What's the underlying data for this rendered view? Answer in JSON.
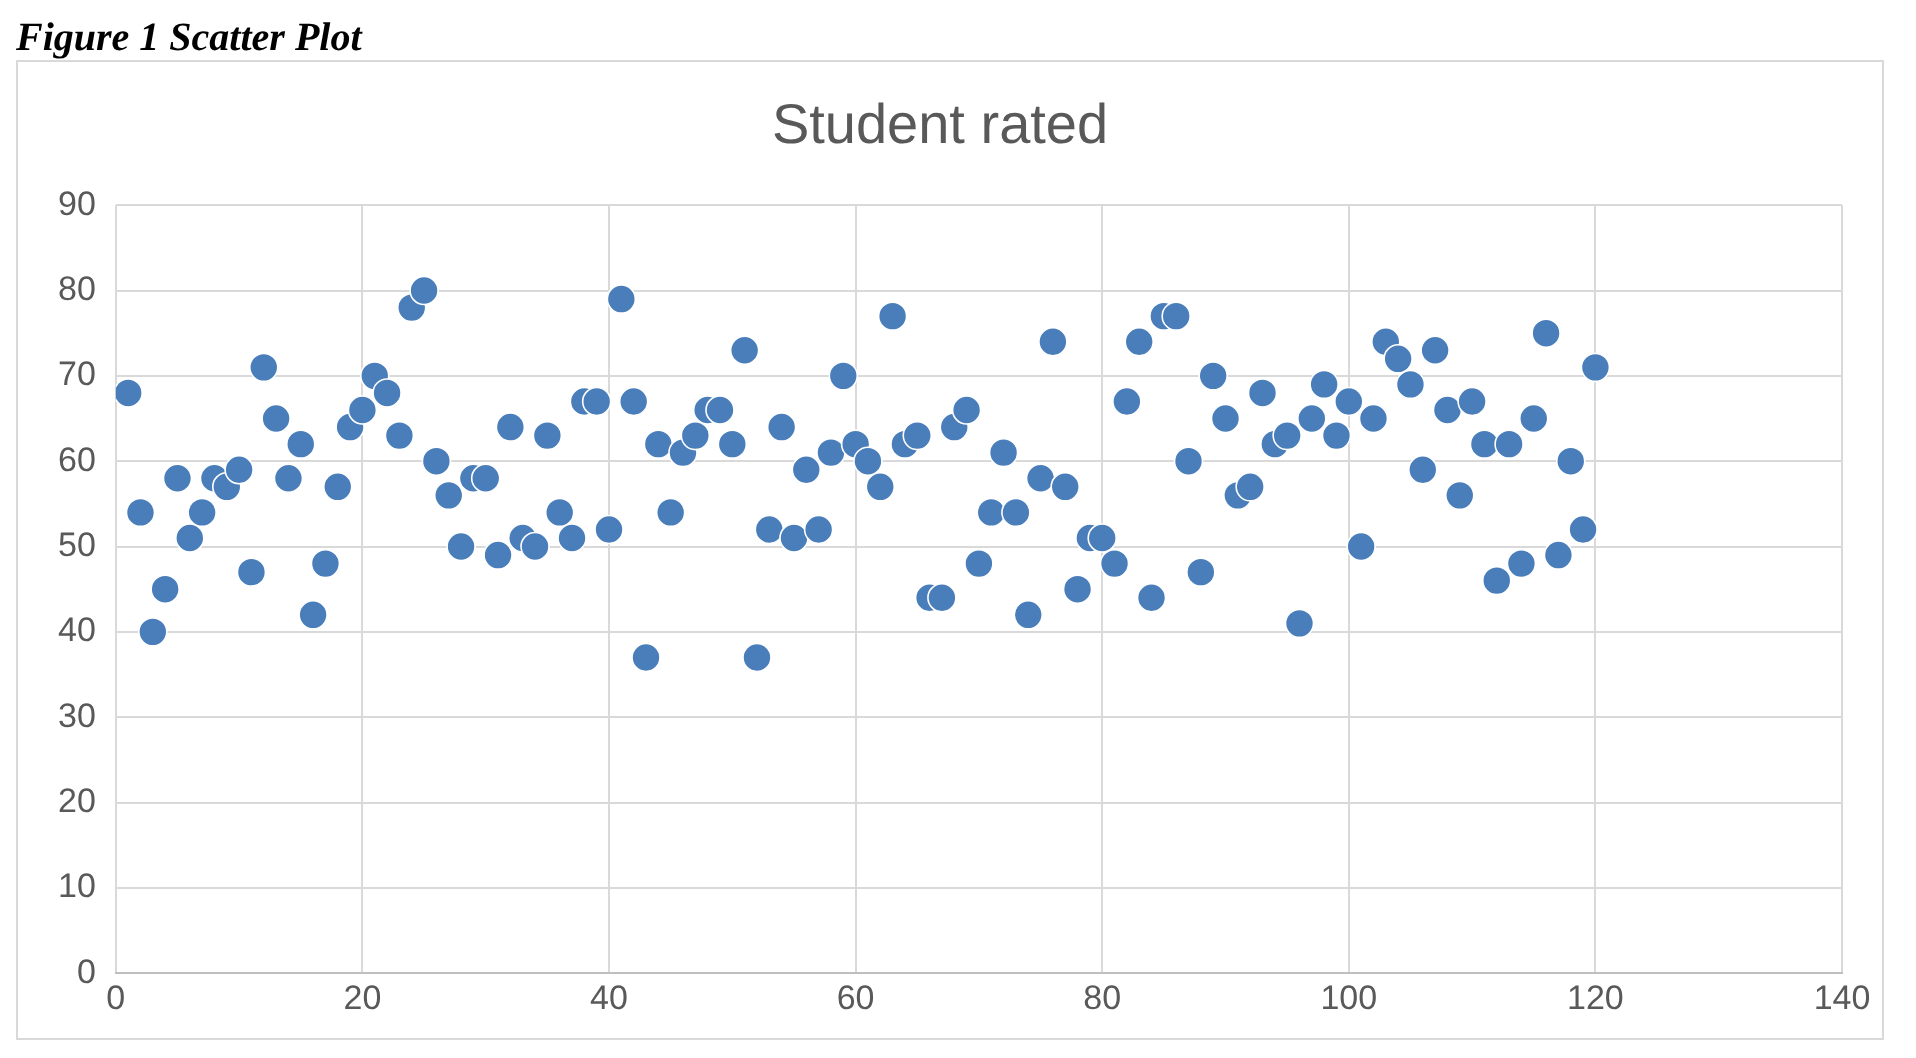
{
  "chart_data": {
    "type": "scatter",
    "title": "Student rated",
    "annotations": [
      "Figure 1 Scatter Plot"
    ],
    "x": [
      1,
      2,
      3,
      4,
      5,
      6,
      7,
      8,
      9,
      10,
      11,
      12,
      13,
      14,
      15,
      16,
      17,
      18,
      19,
      20,
      21,
      22,
      23,
      24,
      25,
      26,
      27,
      28,
      29,
      30,
      31,
      32,
      33,
      34,
      35,
      36,
      37,
      38,
      39,
      40,
      41,
      42,
      43,
      44,
      45,
      46,
      47,
      48,
      49,
      50,
      51,
      52,
      53,
      54,
      55,
      56,
      57,
      58,
      59,
      60,
      61,
      62,
      63,
      64,
      65,
      66,
      67,
      68,
      69,
      70,
      71,
      72,
      73,
      74,
      75,
      76,
      77,
      78,
      79,
      80,
      81,
      82,
      83,
      84,
      85,
      86,
      87,
      88,
      89,
      90,
      91,
      92,
      93,
      94,
      95,
      96,
      97,
      98,
      99,
      100,
      101,
      102,
      103,
      104,
      105,
      106,
      107,
      108,
      109,
      110,
      111,
      112,
      113,
      114,
      115,
      116,
      117,
      118,
      119,
      120
    ],
    "series": [
      {
        "color": "#4a7ebb",
        "values": [
          68,
          54,
          40,
          45,
          58,
          51,
          54,
          58,
          57,
          59,
          47,
          71,
          65,
          58,
          62,
          42,
          48,
          57,
          64,
          66,
          70,
          68,
          63,
          78,
          80,
          60,
          56,
          50,
          58,
          58,
          49,
          64,
          51,
          50,
          63,
          54,
          51,
          67,
          67,
          52,
          79,
          67,
          37,
          62,
          54,
          61,
          63,
          66,
          66,
          62,
          73,
          37,
          52,
          64,
          51,
          59,
          52,
          61,
          70,
          62,
          60,
          57,
          77,
          62,
          63,
          44,
          44,
          64,
          66,
          48,
          54,
          61,
          54,
          42,
          58,
          74,
          57,
          45,
          51,
          51,
          48,
          67,
          74,
          44,
          77,
          77,
          60,
          47,
          70,
          65,
          56,
          57,
          68,
          62,
          63,
          41,
          65,
          69,
          63,
          67,
          50,
          65,
          74,
          72,
          69,
          59,
          73,
          66,
          56,
          67,
          62,
          46,
          62,
          48,
          65,
          75,
          49,
          60,
          52,
          71
        ]
      }
    ],
    "xlim": [
      0,
      140
    ],
    "xticks": [
      0,
      20,
      40,
      60,
      80,
      100,
      120,
      140
    ],
    "ylim": [
      0,
      90
    ],
    "yticks": [
      0,
      10,
      20,
      30,
      40,
      50,
      60,
      70,
      80,
      90
    ],
    "grid": true,
    "marker": "circle",
    "legend": false
  }
}
